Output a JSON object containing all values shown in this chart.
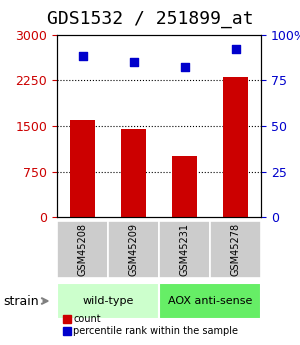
{
  "title": "GDS1532 / 251899_at",
  "samples": [
    "GSM45208",
    "GSM45209",
    "GSM45231",
    "GSM45278"
  ],
  "counts": [
    1600,
    1450,
    1000,
    2300
  ],
  "percentiles": [
    88,
    85,
    82,
    92
  ],
  "left_ylim": [
    0,
    3000
  ],
  "right_ylim": [
    0,
    100
  ],
  "left_yticks": [
    0,
    750,
    1500,
    2250,
    3000
  ],
  "right_yticks": [
    0,
    25,
    50,
    75,
    100
  ],
  "bar_color": "#cc0000",
  "scatter_color": "#0000cc",
  "groups": [
    {
      "label": "wild-type",
      "indices": [
        0,
        1
      ],
      "color": "#ccffcc"
    },
    {
      "label": "AOX anti-sense",
      "indices": [
        2,
        3
      ],
      "color": "#66ee66"
    }
  ],
  "strain_label": "strain",
  "legend_count_label": "count",
  "legend_pct_label": "percentile rank within the sample",
  "title_fontsize": 13,
  "tick_fontsize": 9,
  "bar_width": 0.5,
  "sample_box_color": "#cccccc",
  "grid_yticks": [
    750,
    1500,
    2250
  ]
}
